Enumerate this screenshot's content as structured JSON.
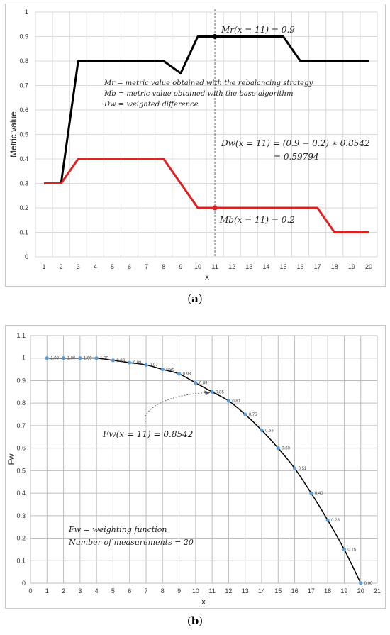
{
  "chart_data": [
    {
      "panel": "a",
      "type": "line",
      "caption": "a",
      "xlabel": "x",
      "ylabel": "Metric value",
      "ylim": [
        0,
        1
      ],
      "yticks": [
        "0",
        "0.1",
        "0.2",
        "0.3",
        "0.4",
        "0.5",
        "0.6",
        "0.7",
        "0.8",
        "0.9",
        "1"
      ],
      "x": [
        1,
        2,
        3,
        4,
        5,
        6,
        7,
        8,
        9,
        10,
        11,
        12,
        13,
        14,
        15,
        16,
        17,
        18,
        19,
        20
      ],
      "grid": true,
      "series": [
        {
          "key": "Mr",
          "color": "#000000",
          "values": [
            0.3,
            0.3,
            0.8,
            0.8,
            0.8,
            0.8,
            0.8,
            0.8,
            0.75,
            0.9,
            0.9,
            0.9,
            0.9,
            0.9,
            0.9,
            0.8,
            0.8,
            0.8,
            0.8,
            0.8
          ]
        },
        {
          "key": "Mb",
          "color": "#e02020",
          "values": [
            0.3,
            0.3,
            0.4,
            0.4,
            0.4,
            0.4,
            0.4,
            0.4,
            0.3,
            0.2,
            0.2,
            0.2,
            0.2,
            0.2,
            0.2,
            0.2,
            0.2,
            0.1,
            0.1,
            0.1
          ]
        }
      ],
      "marker_x": 11,
      "annotations": {
        "mr_point": "Mr(x = 11)  =  0.9",
        "legend_mr": "Mr = metric value obtained with the rebalancing strategy",
        "legend_mb": "Mb = metric value obtained with the base algorithm",
        "legend_dw": "Dw = weighted difference",
        "dw_line1": "Dw(x = 11) = (0.9 − 0.2) ∗ 0.8542",
        "dw_line2": "= 0.59794",
        "mb_point": "Mb(x = 11)  =  0.2"
      }
    },
    {
      "panel": "b",
      "type": "line",
      "caption": "b",
      "xlabel": "x",
      "ylabel": "Fw",
      "xlim": [
        0,
        21
      ],
      "ylim": [
        0,
        1.1
      ],
      "yticks": [
        "0",
        "0.1",
        "0.2",
        "0.3",
        "0.4",
        "0.5",
        "0.6",
        "0.7",
        "0.8",
        "0.9",
        "1",
        "1.1"
      ],
      "xticks": [
        "0",
        "1",
        "2",
        "3",
        "4",
        "5",
        "6",
        "7",
        "8",
        "9",
        "10",
        "11",
        "12",
        "13",
        "14",
        "15",
        "16",
        "17",
        "18",
        "19",
        "20",
        "21"
      ],
      "grid": true,
      "line_color": "#000000",
      "point_color": "#5b9bd5",
      "x": [
        1,
        2,
        3,
        4,
        5,
        6,
        7,
        8,
        9,
        10,
        11,
        12,
        13,
        14,
        15,
        16,
        17,
        18,
        19,
        20
      ],
      "values": [
        1.0,
        1.0,
        1.0,
        1.0,
        0.99,
        0.98,
        0.97,
        0.95,
        0.93,
        0.89,
        0.85,
        0.81,
        0.75,
        0.68,
        0.6,
        0.51,
        0.4,
        0.28,
        0.15,
        0.0
      ],
      "data_labels": [
        "1.00",
        "1.00",
        "1.00",
        "1.00",
        "0.99",
        "0.98",
        "0.97",
        "0.95",
        "0.93",
        "0.89",
        "0.85",
        "0.81",
        "0.75",
        "0.68",
        "0.60",
        "0.51",
        "0.40",
        "0.28",
        "0.15",
        "0.00"
      ],
      "annotations": {
        "fw_point": "Fw(x = 11)  =  0.8542",
        "legend_fw": "Fw = weighting function",
        "legend_n": "Number of measurements  =  20"
      }
    }
  ]
}
